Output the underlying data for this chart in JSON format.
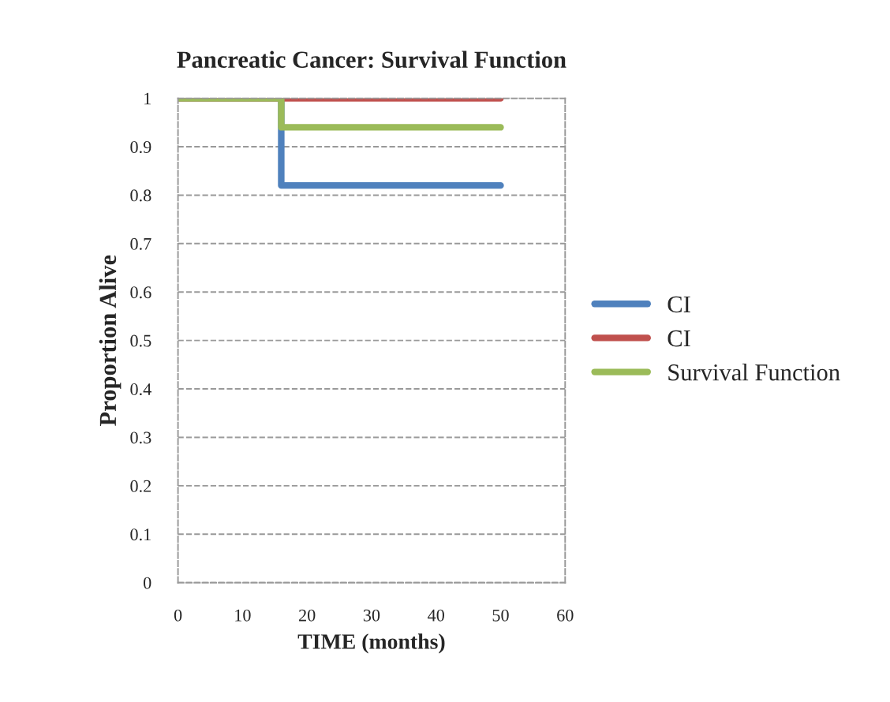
{
  "chart_data": {
    "type": "step",
    "title": "Pancreatic Cancer: Survival Function",
    "xlabel": "TIME (months)",
    "ylabel": "Proportion Alive",
    "x": [
      0,
      16,
      50
    ],
    "series": [
      {
        "name": "CI",
        "color": "#4f81bd",
        "values": [
          1,
          0.82,
          0.82
        ]
      },
      {
        "name": "CI",
        "color": "#c0504d",
        "values": [
          1,
          1,
          1
        ]
      },
      {
        "name": "Survival Function",
        "color": "#9bbb59",
        "values": [
          1,
          0.94,
          0.94
        ]
      }
    ],
    "xlim": [
      0,
      60
    ],
    "xticks": [
      0,
      10,
      20,
      30,
      40,
      50,
      60
    ],
    "ylim": [
      0,
      1
    ],
    "yticks": [
      0,
      0.1,
      0.2,
      0.3,
      0.4,
      0.5,
      0.6,
      0.7,
      0.8,
      0.9,
      1
    ],
    "grid": "y",
    "legend": "right"
  }
}
